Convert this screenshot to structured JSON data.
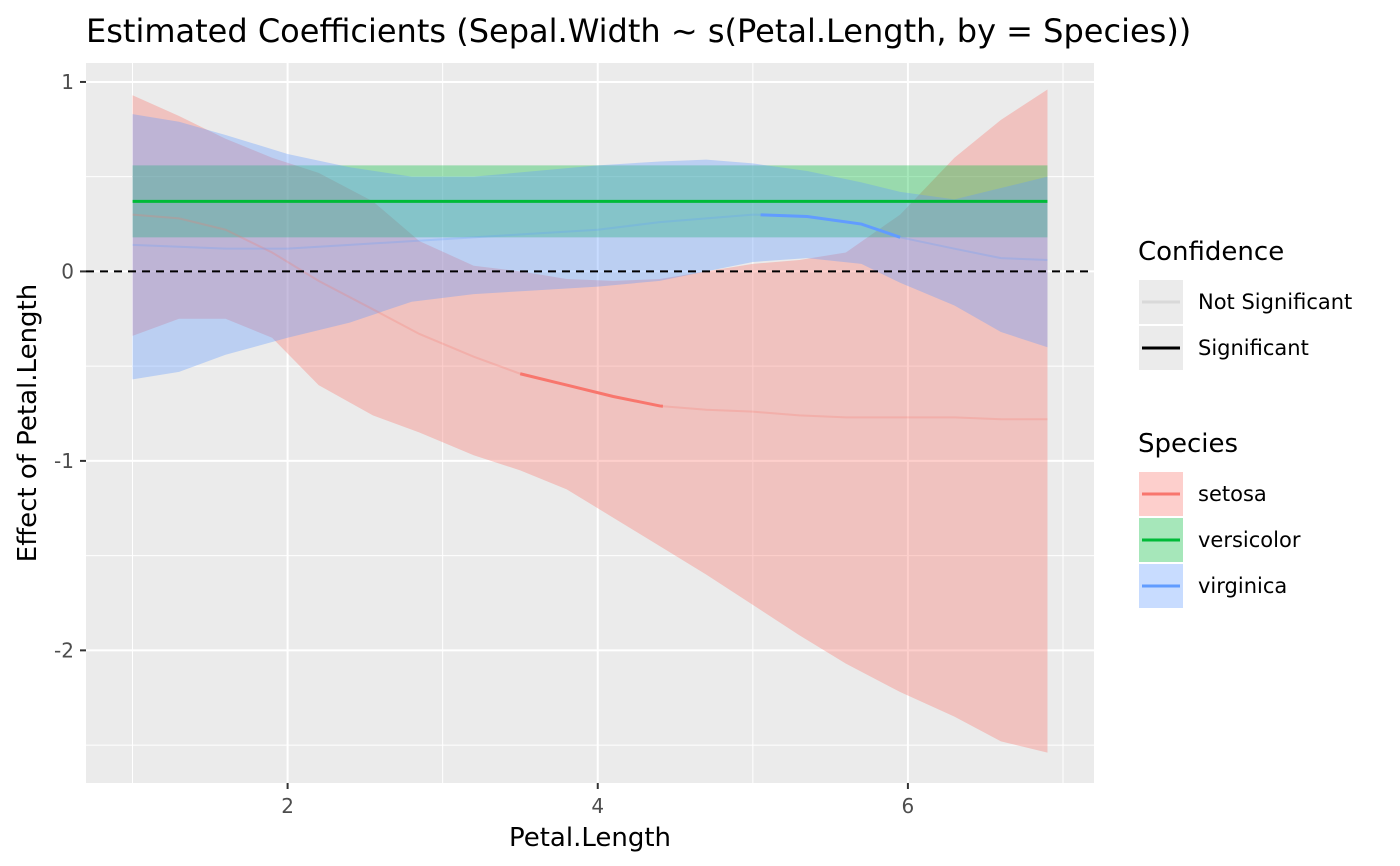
{
  "chart_data": {
    "type": "line",
    "title": "Estimated Coefficients (Sepal.Width ~ s(Petal.Length, by = Species))",
    "xlabel": "Petal.Length",
    "ylabel": "Effect of Petal.Length",
    "xlim": [
      0.7,
      7.2
    ],
    "ylim": [
      -2.7,
      1.1
    ],
    "x_ticks": [
      2,
      4,
      6
    ],
    "x_tick_labels": [
      "2",
      "4",
      "6"
    ],
    "y_ticks": [
      1,
      0,
      -1,
      -2
    ],
    "y_tick_labels": [
      "1",
      "0",
      "-1",
      "-2"
    ],
    "grid": true,
    "reference_line": {
      "y": 0,
      "style": "dashed"
    },
    "legend_position": "right",
    "legends": {
      "confidence": {
        "title": "Confidence",
        "entries": [
          {
            "label": "Not Significant",
            "color": "#d9d9d9"
          },
          {
            "label": "Significant",
            "color": "#000000"
          }
        ]
      },
      "species": {
        "title": "Species",
        "entries": [
          {
            "label": "setosa",
            "color": "#F8766D"
          },
          {
            "label": "versicolor",
            "color": "#00BA38"
          },
          {
            "label": "virginica",
            "color": "#619CFF"
          }
        ]
      }
    },
    "series": [
      {
        "name": "setosa",
        "color": "#F8766D",
        "x": [
          1.0,
          1.3,
          1.6,
          1.9,
          2.2,
          2.55,
          2.85,
          3.2,
          3.5,
          3.8,
          4.1,
          4.4,
          4.7,
          5.0,
          5.3,
          5.6,
          5.95,
          6.3,
          6.6,
          6.9
        ],
        "y": [
          0.3,
          0.28,
          0.22,
          0.1,
          -0.05,
          -0.2,
          -0.33,
          -0.45,
          -0.54,
          -0.6,
          -0.66,
          -0.71,
          -0.73,
          -0.74,
          -0.76,
          -0.77,
          -0.77,
          -0.77,
          -0.78,
          -0.78
        ],
        "lower": [
          -0.34,
          -0.25,
          -0.25,
          -0.35,
          -0.6,
          -0.76,
          -0.85,
          -0.97,
          -1.05,
          -1.15,
          -1.3,
          -1.45,
          -1.6,
          -1.76,
          -1.92,
          -2.07,
          -2.22,
          -2.35,
          -2.48,
          -2.54
        ],
        "upper": [
          0.93,
          0.82,
          0.7,
          0.6,
          0.52,
          0.37,
          0.16,
          0.03,
          0.0,
          -0.04,
          -0.05,
          -0.04,
          0.0,
          0.04,
          0.06,
          0.1,
          0.3,
          0.6,
          0.8,
          0.96
        ],
        "significant_x_range": [
          3.5,
          4.42
        ]
      },
      {
        "name": "versicolor",
        "color": "#00BA38",
        "x": [
          1.0,
          6.9
        ],
        "y": [
          0.37,
          0.37
        ],
        "lower": [
          0.18,
          0.18
        ],
        "upper": [
          0.56,
          0.56
        ],
        "significant_x_range": [
          1.0,
          6.9
        ]
      },
      {
        "name": "virginica",
        "color": "#619CFF",
        "x": [
          1.0,
          1.3,
          1.6,
          2.0,
          2.4,
          2.8,
          3.2,
          3.6,
          4.0,
          4.4,
          4.7,
          5.0,
          5.35,
          5.7,
          5.95,
          6.3,
          6.6,
          6.9
        ],
        "y": [
          0.14,
          0.13,
          0.12,
          0.12,
          0.14,
          0.16,
          0.18,
          0.2,
          0.22,
          0.26,
          0.28,
          0.3,
          0.29,
          0.25,
          0.18,
          0.12,
          0.07,
          0.06
        ],
        "lower": [
          -0.57,
          -0.53,
          -0.44,
          -0.35,
          -0.27,
          -0.16,
          -0.12,
          -0.1,
          -0.08,
          -0.05,
          0.0,
          0.05,
          0.07,
          0.04,
          -0.06,
          -0.18,
          -0.32,
          -0.4
        ],
        "upper": [
          0.83,
          0.79,
          0.72,
          0.62,
          0.55,
          0.5,
          0.5,
          0.53,
          0.56,
          0.58,
          0.59,
          0.57,
          0.53,
          0.47,
          0.42,
          0.38,
          0.44,
          0.5
        ],
        "significant_x_range": [
          5.05,
          5.95
        ]
      }
    ]
  }
}
